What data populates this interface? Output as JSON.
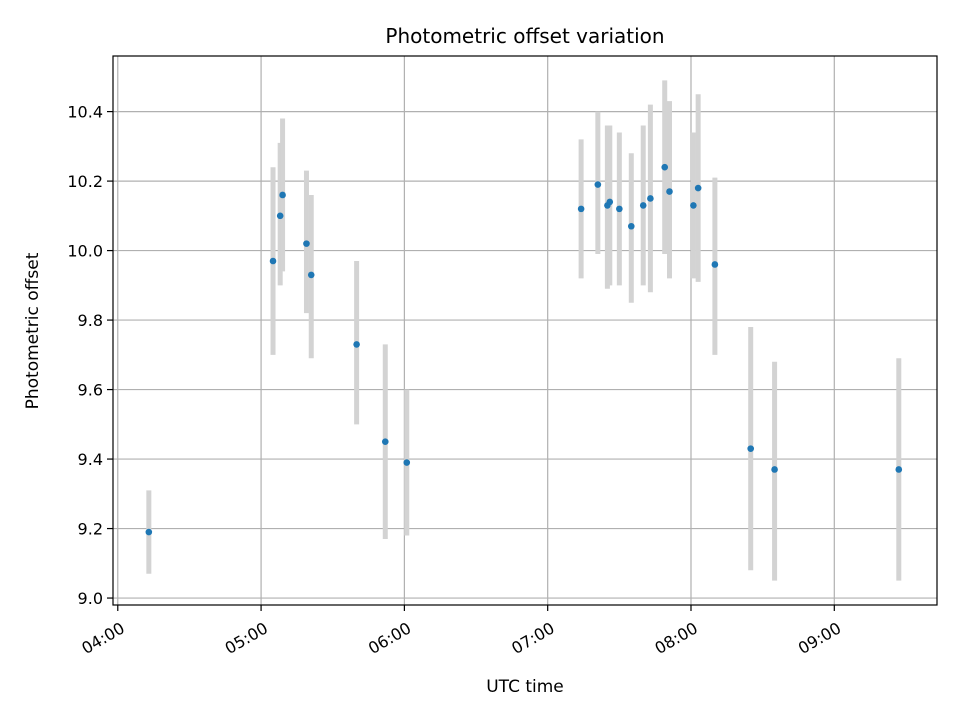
{
  "chart_data": {
    "type": "scatter",
    "title": "Photometric offset variation",
    "xlabel": "UTC time",
    "ylabel": "Photometric offset",
    "x_unit": "HH:MM UTC",
    "xlim": [
      "03:58",
      "09:43"
    ],
    "ylim": [
      8.98,
      10.56
    ],
    "x_ticks": [
      "04:00",
      "05:00",
      "06:00",
      "07:00",
      "08:00",
      "09:00"
    ],
    "y_ticks": [
      9.0,
      9.2,
      9.4,
      9.6,
      9.8,
      10.0,
      10.2,
      10.4
    ],
    "y_tick_labels": [
      "9.0",
      "9.2",
      "9.4",
      "9.6",
      "9.8",
      "10.0",
      "10.2",
      "10.4"
    ],
    "grid": true,
    "colors": {
      "point": "#1f77b4",
      "errorbar": "#d3d3d3",
      "grid": "#b0b0b0"
    },
    "series": [
      {
        "points": [
          {
            "x": "04:13",
            "y": 9.19,
            "lo": 9.07,
            "hi": 9.31
          },
          {
            "x": "05:05",
            "y": 9.97,
            "lo": 9.7,
            "hi": 10.24
          },
          {
            "x": "05:08",
            "y": 10.1,
            "lo": 9.9,
            "hi": 10.31
          },
          {
            "x": "05:09",
            "y": 10.16,
            "lo": 9.94,
            "hi": 10.38
          },
          {
            "x": "05:19",
            "y": 10.02,
            "lo": 9.82,
            "hi": 10.23
          },
          {
            "x": "05:21",
            "y": 9.93,
            "lo": 9.69,
            "hi": 10.16
          },
          {
            "x": "05:40",
            "y": 9.73,
            "lo": 9.5,
            "hi": 9.97
          },
          {
            "x": "05:52",
            "y": 9.45,
            "lo": 9.17,
            "hi": 9.73
          },
          {
            "x": "06:01",
            "y": 9.39,
            "lo": 9.18,
            "hi": 9.6
          },
          {
            "x": "07:14",
            "y": 10.12,
            "lo": 9.92,
            "hi": 10.32
          },
          {
            "x": "07:21",
            "y": 10.19,
            "lo": 9.99,
            "hi": 10.4
          },
          {
            "x": "07:25",
            "y": 10.13,
            "lo": 9.89,
            "hi": 10.36
          },
          {
            "x": "07:26",
            "y": 10.14,
            "lo": 9.9,
            "hi": 10.36
          },
          {
            "x": "07:30",
            "y": 10.12,
            "lo": 9.9,
            "hi": 10.34
          },
          {
            "x": "07:35",
            "y": 10.07,
            "lo": 9.85,
            "hi": 10.28
          },
          {
            "x": "07:40",
            "y": 10.13,
            "lo": 9.9,
            "hi": 10.36
          },
          {
            "x": "07:43",
            "y": 10.15,
            "lo": 9.88,
            "hi": 10.42
          },
          {
            "x": "07:49",
            "y": 10.24,
            "lo": 9.99,
            "hi": 10.49
          },
          {
            "x": "07:51",
            "y": 10.17,
            "lo": 9.92,
            "hi": 10.43
          },
          {
            "x": "08:01",
            "y": 10.13,
            "lo": 9.92,
            "hi": 10.34
          },
          {
            "x": "08:03",
            "y": 10.18,
            "lo": 9.91,
            "hi": 10.45
          },
          {
            "x": "08:10",
            "y": 9.96,
            "lo": 9.7,
            "hi": 10.21
          },
          {
            "x": "08:25",
            "y": 9.43,
            "lo": 9.08,
            "hi": 9.78
          },
          {
            "x": "08:35",
            "y": 9.37,
            "lo": 9.05,
            "hi": 9.68
          },
          {
            "x": "09:27",
            "y": 9.37,
            "lo": 9.05,
            "hi": 9.69
          }
        ]
      }
    ]
  }
}
